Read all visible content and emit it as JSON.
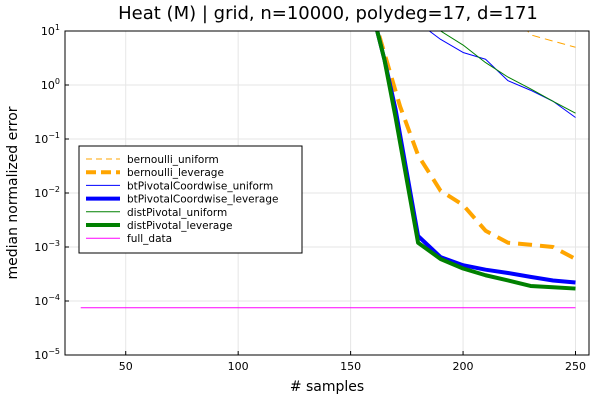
{
  "chart_data": {
    "type": "line",
    "title": "Heat (M) | grid, n=10000, polydeg=17, d=171",
    "xlabel": "# samples",
    "ylabel": "median normalized error",
    "xlim": [
      23,
      256
    ],
    "ylim": [
      1e-05,
      10
    ],
    "y_scale": "log",
    "x_ticks": [
      50,
      100,
      150,
      200,
      250
    ],
    "x_tick_labels": [
      "50",
      "100",
      "150",
      "200",
      "250"
    ],
    "y_ticks": [
      1e-05,
      0.0001,
      0.001,
      0.01,
      0.1,
      1,
      10
    ],
    "y_tick_labels": [
      {
        "base": "10",
        "exp": "−5"
      },
      {
        "base": "10",
        "exp": "−4"
      },
      {
        "base": "10",
        "exp": "−3"
      },
      {
        "base": "10",
        "exp": "−2"
      },
      {
        "base": "10",
        "exp": "−1"
      },
      {
        "base": "10",
        "exp": "0"
      },
      {
        "base": "10",
        "exp": "1"
      }
    ],
    "grid": true,
    "legend_position": "left",
    "series": [
      {
        "name": "bernoulli_uniform",
        "color": "#FFA500",
        "style": "dash",
        "width": 1,
        "x": [
          220,
          230,
          240,
          250
        ],
        "y": [
          30,
          8.5,
          6.5,
          5
        ]
      },
      {
        "name": "bernoulli_leverage",
        "color": "#FFA500",
        "style": "dash",
        "width": 4,
        "x": [
          160,
          172,
          180,
          190,
          200,
          210,
          220,
          230,
          240,
          250
        ],
        "y": [
          20,
          0.4,
          0.05,
          0.011,
          0.006,
          0.002,
          0.0012,
          0.0011,
          0.001,
          0.0006
        ]
      },
      {
        "name": "btPivotalCoordwise_uniform",
        "color": "#0000FF",
        "style": "solid",
        "width": 1,
        "x": [
          185,
          190,
          200,
          210,
          220,
          230,
          240,
          250
        ],
        "y": [
          10,
          7,
          4,
          3,
          1.2,
          0.8,
          0.5,
          0.25
        ]
      },
      {
        "name": "btPivotalCoordwise_leverage",
        "color": "#0000FF",
        "style": "solid",
        "width": 4,
        "x": [
          160,
          165,
          170,
          180,
          190,
          200,
          210,
          220,
          230,
          240,
          250
        ],
        "y": [
          20,
          3,
          0.35,
          0.0016,
          0.00065,
          0.00046,
          0.00038,
          0.00033,
          0.00028,
          0.00024,
          0.00022
        ]
      },
      {
        "name": "distPivotal_uniform",
        "color": "#008000",
        "style": "solid",
        "width": 1,
        "x": [
          190,
          200,
          210,
          220,
          230,
          240,
          250
        ],
        "y": [
          10,
          5.5,
          2.6,
          1.4,
          0.85,
          0.5,
          0.3
        ]
      },
      {
        "name": "distPivotal_leverage",
        "color": "#008000",
        "style": "solid",
        "width": 4,
        "x": [
          160,
          165,
          170,
          180,
          190,
          200,
          210,
          220,
          230,
          240,
          250
        ],
        "y": [
          20,
          3,
          0.25,
          0.0012,
          0.0006,
          0.0004,
          0.0003,
          0.00024,
          0.00019,
          0.00018,
          0.00017
        ]
      },
      {
        "name": "full_data",
        "color": "#FF00FF",
        "style": "solid",
        "width": 1,
        "x": [
          30,
          250
        ],
        "y": [
          7.5e-05,
          7.5e-05
        ]
      }
    ]
  }
}
